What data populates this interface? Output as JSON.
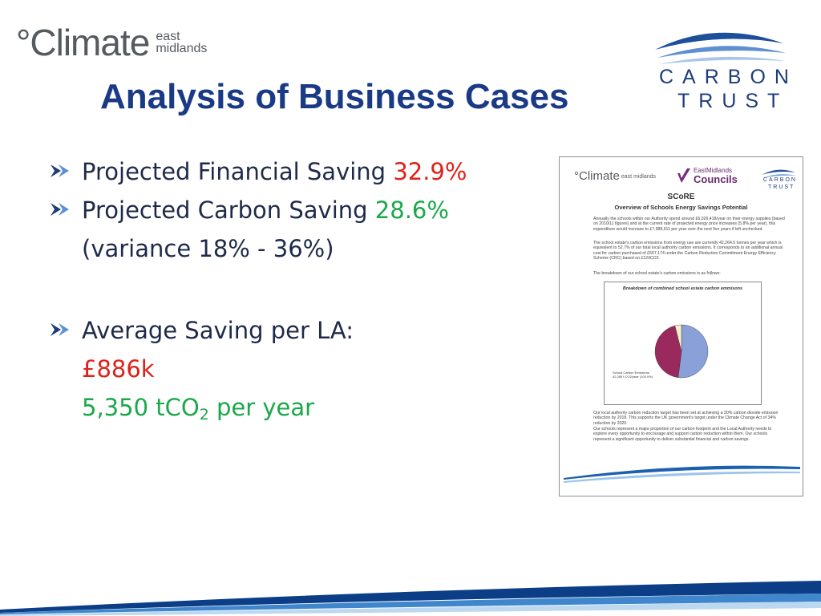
{
  "header": {
    "climate_logo": {
      "word": "°Climate",
      "sub1": "east",
      "sub2": "midlands"
    },
    "carbon_trust_logo": {
      "line1": "CARBON",
      "line2": "TRUST"
    }
  },
  "title": "Analysis of Business Cases",
  "bullets": {
    "financial_label": "Projected Financial Saving",
    "financial_value": "32.9%",
    "carbon_label": "Projected Carbon Saving",
    "carbon_value": "28.6%",
    "variance": "(variance 18% - 36%)",
    "average_label": "Average Saving per LA:",
    "average_money": "£886k",
    "average_carbon_prefix": "5,350 tCO",
    "average_carbon_sub": "2",
    "average_carbon_suffix": " per year"
  },
  "document": {
    "climate_word": "°Climate",
    "climate_sub": "east midlands",
    "em_line1": "EastMidlands",
    "em_line2": "Councils",
    "ct_line1": "CARBON",
    "ct_line2": "TRUST",
    "heading": "SCoRE",
    "subheading": "Overview of Schools Energy Savings Potential",
    "para1": "Annually the schools within our Authority spend around £6,026,418/year on their energy supplies (based on 2010/11 figures) and at the current rate of projected energy price increases (5.8% per year), this expenditure would increase to £7,988,911 per year over the next five years if left unchecked.",
    "para2": "The school estate's carbon emissions from energy use are currently 42,264.5 tonnes per year which is equivalent to 52.7% of our total local authority carbon emissions. It corresponds to an additional annual cost for carbon purchased of £507,174 under the Carbon Reduction Commitment Energy Efficiency Scheme (CRC) based on £12/tCO2.",
    "para3": "The breakdown of our school estate's carbon emissions is as follows:",
    "chart_title": "Breakdown of combined school estate carbon emmisons",
    "legend_line1": "School Carbon Emissions",
    "legend_line2": "42,265 t CO2/year (100.0%)",
    "para4": "Our local authority carbon reduction target has been set at achieving a 30% carbon dioxide emission reduction by 2018. This supports the UK government's target under the Climate Change Act of 34% reduction by 2020.",
    "para5": "Our schools represent a major proportion of our carbon footprint and the Local Authority needs to explore every opportunity to encourage and support carbon reduction within them. Our schools represent a significant opportunity to deliver substantial financial and carbon savings."
  },
  "chart_data": {
    "type": "pie",
    "title": "Breakdown of combined school estate carbon emmisons",
    "categories": [
      "",
      "",
      ""
    ],
    "values": [
      52,
      44,
      4
    ],
    "colors": [
      "#8aa0d8",
      "#9a2a5e",
      "#f4f0c8"
    ]
  },
  "colors": {
    "title": "#1a3a86",
    "red_value": "#e0201a",
    "green_value": "#1aa84a",
    "brand_blue": "#1d3d7a"
  }
}
